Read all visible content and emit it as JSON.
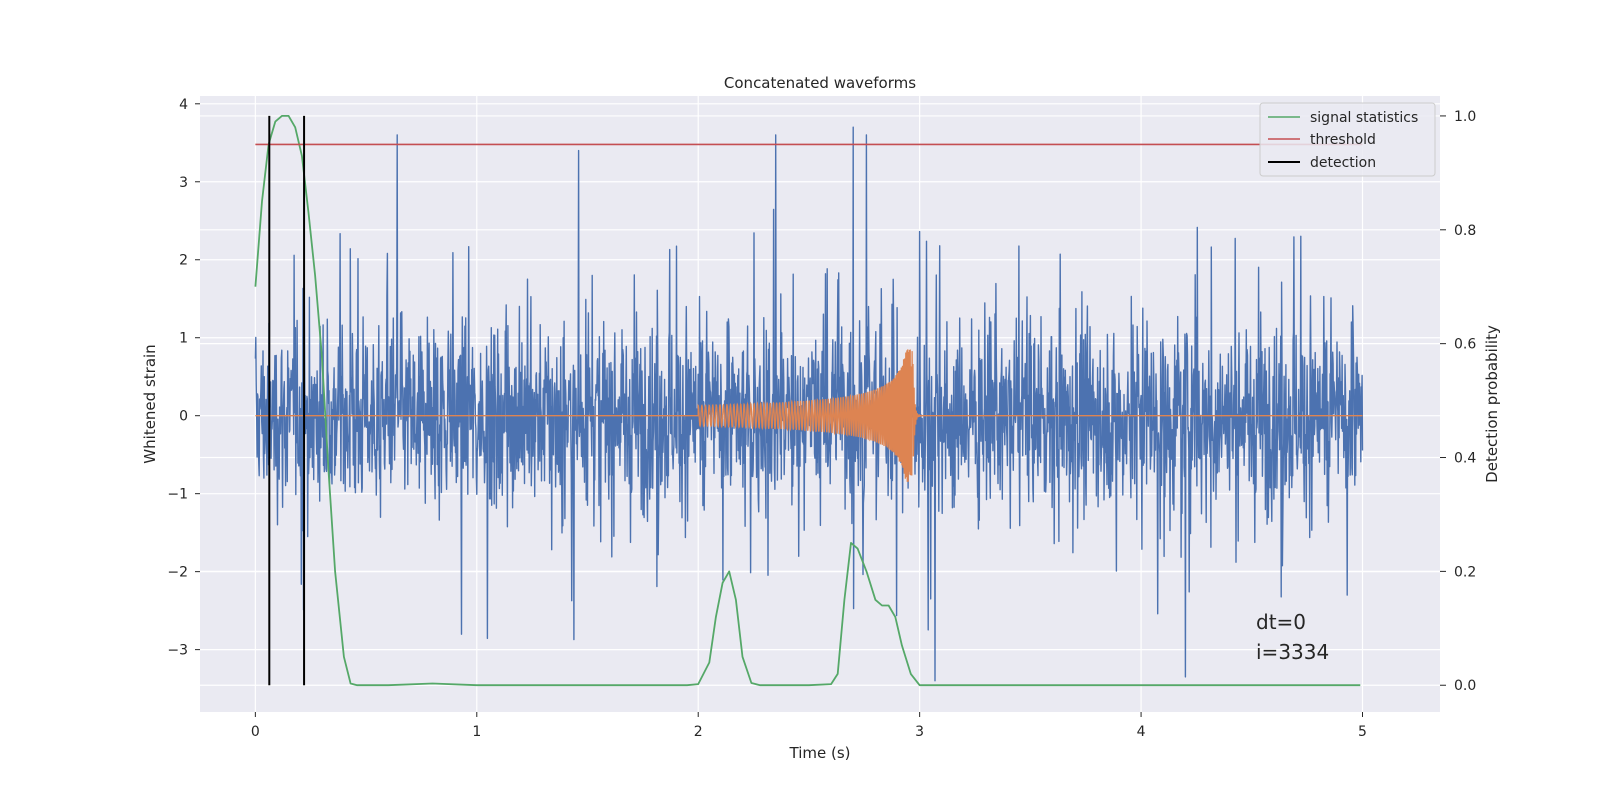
{
  "chart_data": {
    "type": "line",
    "title": "Concatenated waveforms",
    "xlabel": "Time (s)",
    "ylabel_left": "Whitened strain",
    "ylabel_right": "Detection probability",
    "xlim": [
      -0.25,
      5.35
    ],
    "ylim_left": [
      -3.8,
      4.1
    ],
    "ylim_right": [
      -0.047,
      1.035
    ],
    "x_ticks": [
      "0",
      "1",
      "2",
      "3",
      "4",
      "5"
    ],
    "y_ticks_left": [
      "−3",
      "−2",
      "−1",
      "0",
      "1",
      "2",
      "3",
      "4"
    ],
    "y_ticks_right": [
      "0.0",
      "0.2",
      "0.4",
      "0.6",
      "0.8",
      "1.0"
    ],
    "grid": true,
    "legend_position": "top-right",
    "legend": [
      "signal statistics",
      "threshold",
      "detection"
    ],
    "series": [
      {
        "name": "signal statistics",
        "axis": "right",
        "color": "#55a868",
        "x": [
          0,
          0.03,
          0.06,
          0.09,
          0.12,
          0.15,
          0.18,
          0.21,
          0.24,
          0.27,
          0.3,
          0.33,
          0.36,
          0.4,
          0.43,
          0.46,
          0.6,
          0.8,
          1.0,
          1.5,
          1.95,
          2.0,
          2.05,
          2.08,
          2.11,
          2.14,
          2.17,
          2.2,
          2.24,
          2.28,
          2.32,
          2.5,
          2.6,
          2.63,
          2.66,
          2.69,
          2.72,
          2.76,
          2.8,
          2.83,
          2.86,
          2.89,
          2.92,
          2.96,
          3.0,
          3.1,
          4.0,
          4.99
        ],
        "values": [
          0.7,
          0.85,
          0.95,
          0.99,
          1.0,
          1.0,
          0.98,
          0.93,
          0.83,
          0.72,
          0.58,
          0.38,
          0.2,
          0.05,
          0.003,
          0.0,
          0.0,
          0.003,
          0.0,
          0.0,
          0.0,
          0.002,
          0.04,
          0.12,
          0.18,
          0.2,
          0.15,
          0.05,
          0.004,
          0.0,
          0.0,
          0.0,
          0.002,
          0.02,
          0.15,
          0.25,
          0.24,
          0.2,
          0.15,
          0.14,
          0.14,
          0.12,
          0.07,
          0.02,
          0.0,
          0.0,
          0.0,
          0.0
        ]
      },
      {
        "name": "threshold",
        "axis": "right",
        "color": "#c44e52",
        "x": [
          0,
          5.0
        ],
        "values": [
          0.95,
          0.95
        ]
      },
      {
        "name": "detection",
        "axis": "right",
        "color": "#000000",
        "x": [
          0.063,
          0.22
        ],
        "values": [
          1.0,
          1.0
        ]
      },
      {
        "name": "",
        "axis": "left",
        "color": "#4c72b0",
        "noise_envelope_x": [
          0,
          0.5,
          1.0,
          1.5,
          2.0,
          2.5,
          3.0,
          3.5,
          4.0,
          4.5,
          5.0
        ],
        "noise_envelope": [
          2.0,
          1.6,
          1.5,
          1.6,
          1.6,
          1.7,
          1.7,
          1.6,
          1.7,
          1.7,
          1.8
        ],
        "notable_peaks_x": [
          0.64,
          1.46,
          2.35,
          2.7,
          2.76,
          3.07,
          4.2
        ],
        "notable_peaks_y": [
          3.6,
          3.4,
          3.6,
          3.7,
          3.6,
          -3.4,
          -3.35
        ]
      },
      {
        "name": "",
        "axis": "left",
        "color": "#dd8452",
        "chirp_start": 2.0,
        "chirp_end": 2.97,
        "chirp_amplitude_start": 0.13,
        "chirp_amplitude_end": 0.85
      }
    ],
    "annotations": [
      "dt=0",
      "i=3334"
    ]
  }
}
